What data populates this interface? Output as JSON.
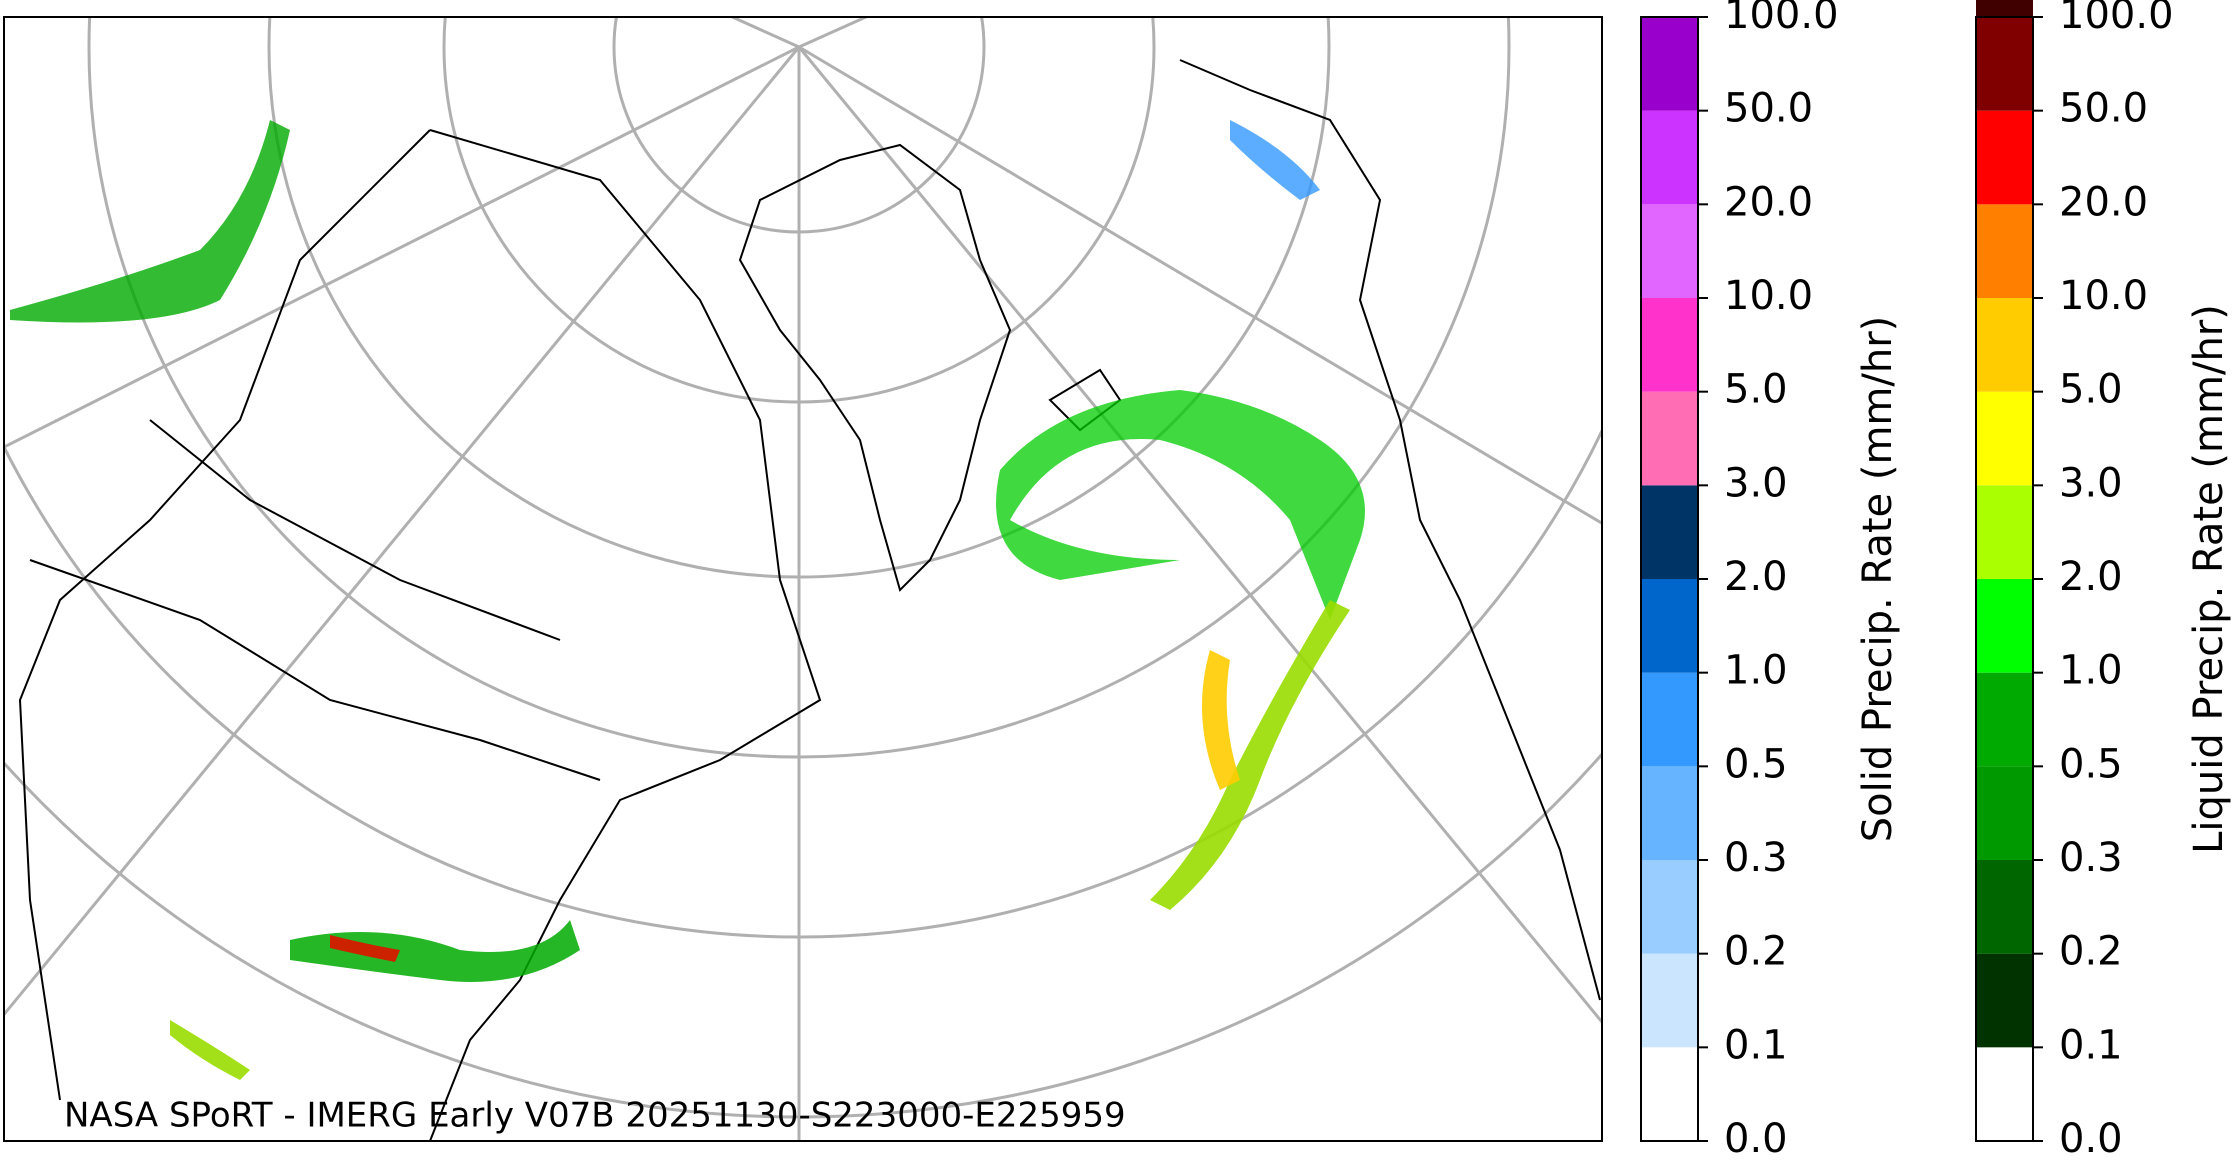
{
  "annotation": "NASA SPoRT - IMERG Early V07B 20251130-S223000-E225959",
  "colorbars": [
    {
      "label": "Solid Precip. Rate (mm/hr)",
      "ticks": [
        "0.0",
        "0.1",
        "0.2",
        "0.3",
        "0.5",
        "1.0",
        "2.0",
        "3.0",
        "5.0",
        "10.0",
        "20.0",
        "50.0",
        "100.0"
      ],
      "colors": [
        "#ffffff",
        "#cce5ff",
        "#99ccff",
        "#66b3ff",
        "#3399ff",
        "#0066cc",
        "#003366",
        "#ff6eb4",
        "#ff33cc",
        "#e066ff",
        "#cc33ff",
        "#9900cc"
      ]
    },
    {
      "label": "Liquid Precip. Rate (mm/hr)",
      "ticks": [
        "0.0",
        "0.1",
        "0.2",
        "0.3",
        "0.5",
        "1.0",
        "2.0",
        "3.0",
        "5.0",
        "10.0",
        "20.0",
        "50.0",
        "100.0"
      ],
      "colors": [
        "#ffffff",
        "#003300",
        "#006600",
        "#009900",
        "#00aa00",
        "#00ff00",
        "#aaff00",
        "#ffff00",
        "#ffcc00",
        "#ff8000",
        "#ff0000",
        "#800000",
        "#400000"
      ]
    }
  ]
}
